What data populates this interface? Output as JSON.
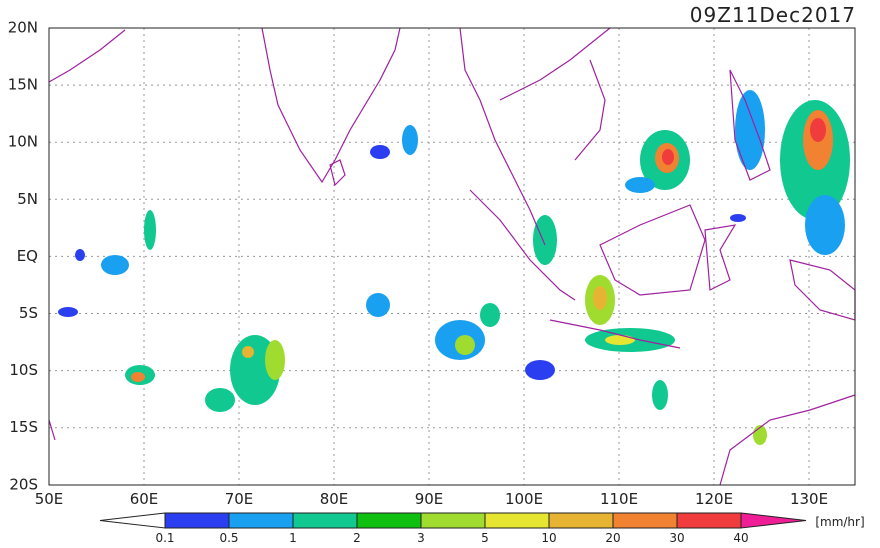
{
  "title": "09Z11Dec2017",
  "lat_labels": [
    "20N",
    "15N",
    "10N",
    "5N",
    "EQ",
    "5S",
    "10S",
    "15S",
    "20S"
  ],
  "lon_labels": [
    "50E",
    "60E",
    "70E",
    "80E",
    "90E",
    "100E",
    "110E",
    "120E",
    "130E"
  ],
  "colorbar": {
    "labels": [
      "0.1",
      "0.5",
      "1",
      "2",
      "3",
      "5",
      "10",
      "20",
      "30",
      "40"
    ],
    "colors": [
      "#ffffff",
      "#2b3ff0",
      "#1aa0f0",
      "#10c890",
      "#10c010",
      "#a0dc30",
      "#e6e632",
      "#e6b432",
      "#f08232",
      "#f03c3c",
      "#f01e96"
    ],
    "unit": "[mm/hr]"
  }
}
